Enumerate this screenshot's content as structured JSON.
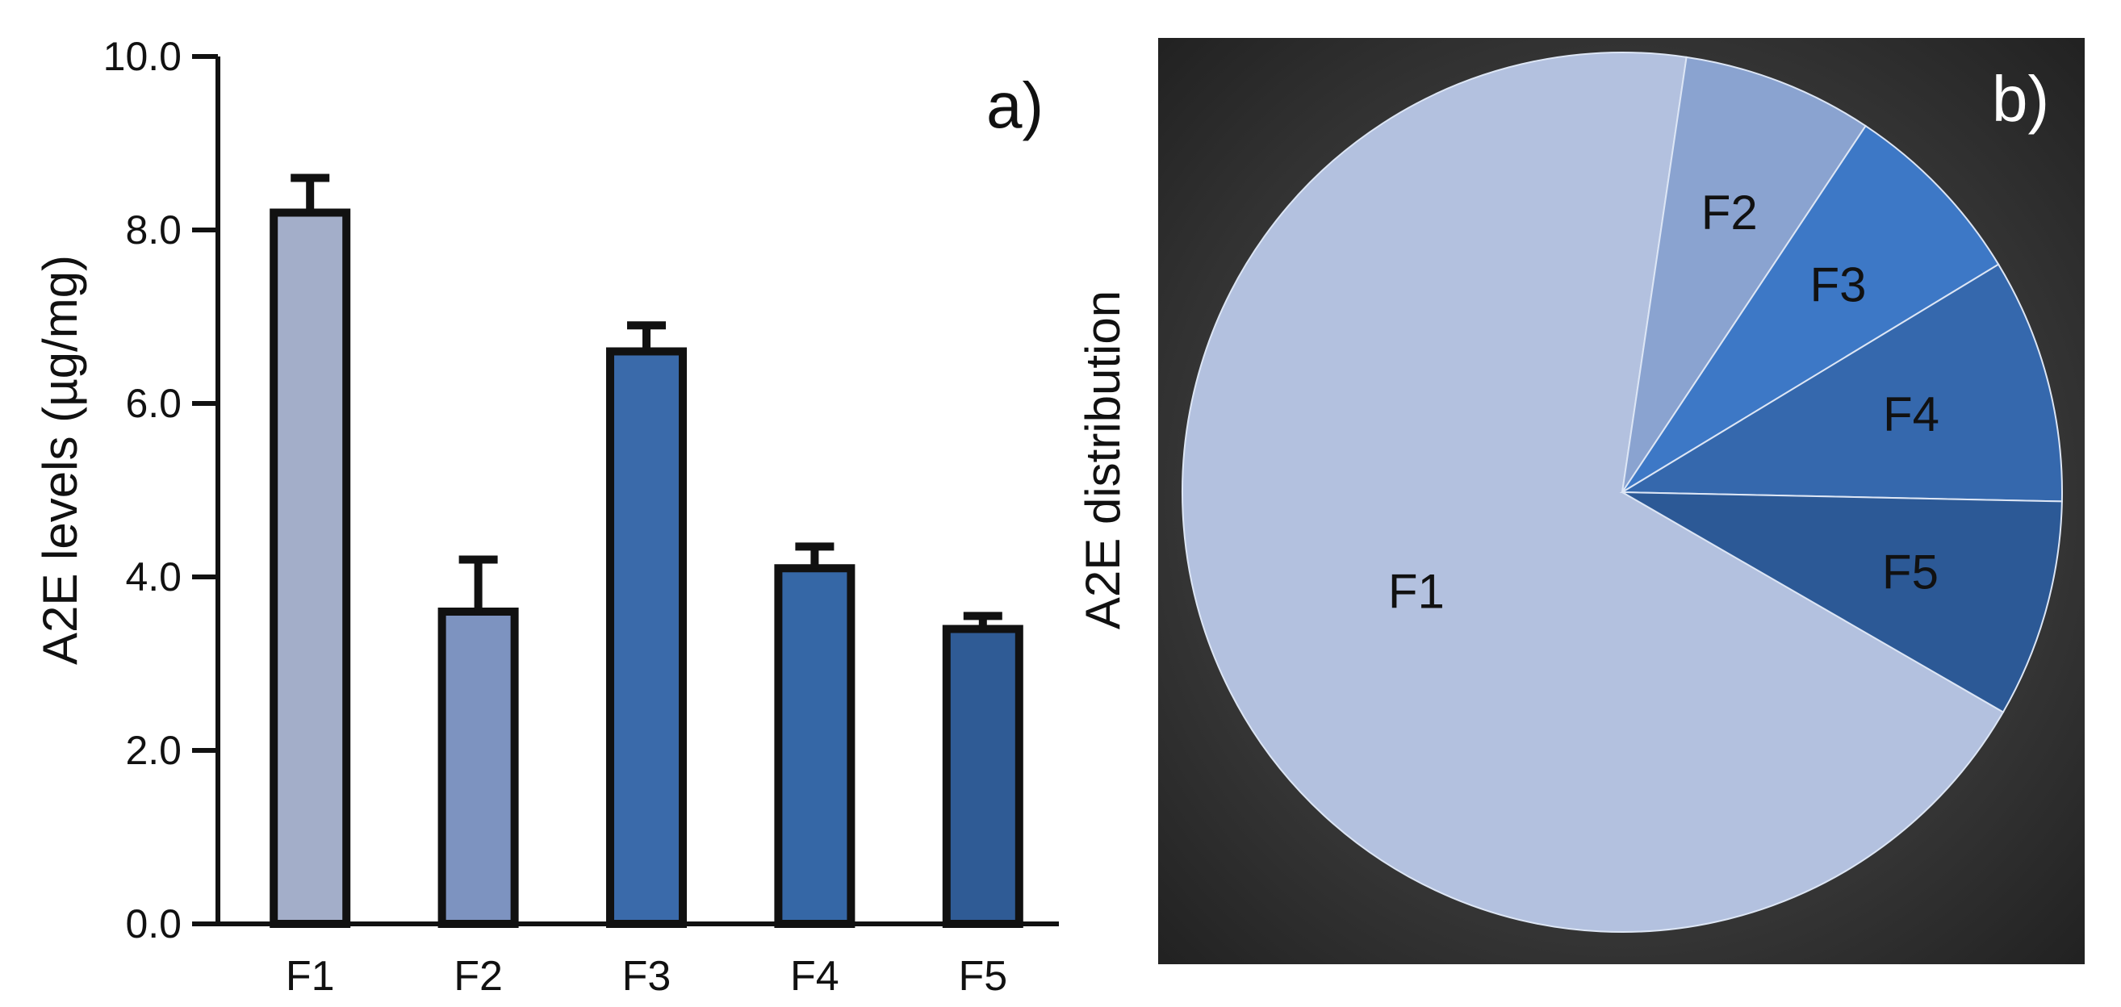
{
  "chart_data": [
    {
      "type": "bar",
      "panel_label": "a)",
      "ylabel": "A2E levels (µg/mg)",
      "ylim": [
        0,
        10
      ],
      "yticks": [
        "0.0",
        "2.0",
        "4.0",
        "6.0",
        "8.0",
        "10.0"
      ],
      "categories": [
        "F1",
        "F2",
        "F3",
        "F4",
        "F5"
      ],
      "values": [
        8.2,
        3.6,
        6.6,
        4.1,
        3.4
      ],
      "errors": [
        0.4,
        0.6,
        0.3,
        0.25,
        0.15
      ],
      "colors": [
        "#a3aec9",
        "#7d93c0",
        "#3a6aaa",
        "#3567a6",
        "#2f5b95"
      ],
      "grid": false
    },
    {
      "type": "pie",
      "panel_label": "b)",
      "ylabel": "A2E distribution",
      "categories": [
        "F1",
        "F2",
        "F3",
        "F4",
        "F5"
      ],
      "values": [
        69.0,
        7.0,
        7.0,
        9.0,
        8.0
      ],
      "colors": [
        "#b3c1df",
        "#8aa3d0",
        "#3d78c6",
        "#3568ad",
        "#2c5996"
      ],
      "background": "#333333"
    }
  ]
}
